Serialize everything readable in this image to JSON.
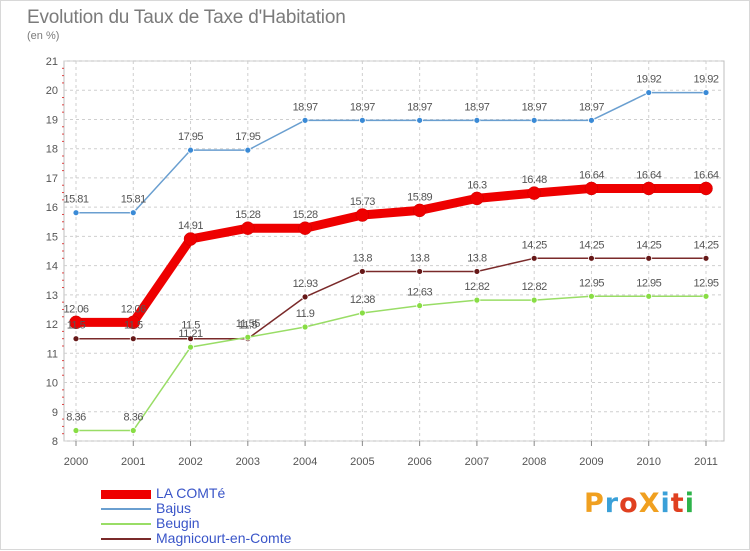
{
  "title": "Evolution du Taux de Taxe d'Habitation",
  "subtitle": "(en %)",
  "logo": {
    "text": "ProXiti",
    "colors": [
      "#f0a020",
      "#3aa0d8",
      "#e04020",
      "#f0a020",
      "#3aa0d8",
      "#e04020",
      "#2db34a"
    ]
  },
  "chart_data": {
    "type": "line",
    "x": [
      "2000",
      "2001",
      "2002",
      "2003",
      "2004",
      "2005",
      "2006",
      "2007",
      "2008",
      "2009",
      "2010",
      "2011"
    ],
    "ylim": [
      8,
      21
    ],
    "yticks": [
      "8",
      "9",
      "10",
      "11",
      "12",
      "13",
      "14",
      "15",
      "16",
      "17",
      "18",
      "19",
      "20",
      "21"
    ],
    "grid": true,
    "legend_position": "bottom-left",
    "series": [
      {
        "name": "LA COMTé",
        "color": "#ee0000",
        "values": [
          12.06,
          12.06,
          14.91,
          15.28,
          15.28,
          15.73,
          15.89,
          16.3,
          16.48,
          16.64,
          16.64,
          16.64
        ],
        "labels": [
          "12.06",
          "12.06",
          "14.91",
          "15.28",
          "15.28",
          "15.73",
          "15.89",
          "16.3",
          "16.48",
          "16.64",
          "16.64",
          "16.64"
        ]
      },
      {
        "name": "Bajus",
        "color": "#6a9fd0",
        "values": [
          15.81,
          15.81,
          17.95,
          17.95,
          18.97,
          18.97,
          18.97,
          18.97,
          18.97,
          18.97,
          19.92,
          19.92
        ],
        "labels": [
          "15.81",
          "15.81",
          "17.95",
          "17.95",
          "18.97",
          "18.97",
          "18.97",
          "18.97",
          "18.97",
          "18.97",
          "19.92",
          "19.92"
        ]
      },
      {
        "name": "Beugin",
        "color": "#99dd66",
        "values": [
          8.36,
          8.36,
          11.21,
          11.55,
          11.9,
          12.38,
          12.63,
          12.82,
          12.82,
          12.95,
          12.95,
          12.95
        ],
        "labels": [
          "8.36",
          "8.36",
          "11.21",
          "11.55",
          "11.9",
          "12.38",
          "12.63",
          "12.82",
          "12.82",
          "12.95",
          "12.95",
          "12.95"
        ]
      },
      {
        "name": "Magnicourt-en-Comte",
        "color": "#7a2a2a",
        "values": [
          11.5,
          11.5,
          11.5,
          11.5,
          12.93,
          13.8,
          13.8,
          13.8,
          14.25,
          14.25,
          14.25,
          14.25
        ],
        "labels": [
          "11.5",
          "11.5",
          "11.5",
          "11.5",
          "12.93",
          "13.8",
          "13.8",
          "13.8",
          "14.25",
          "14.25",
          "14.25",
          "14.25"
        ]
      }
    ]
  }
}
